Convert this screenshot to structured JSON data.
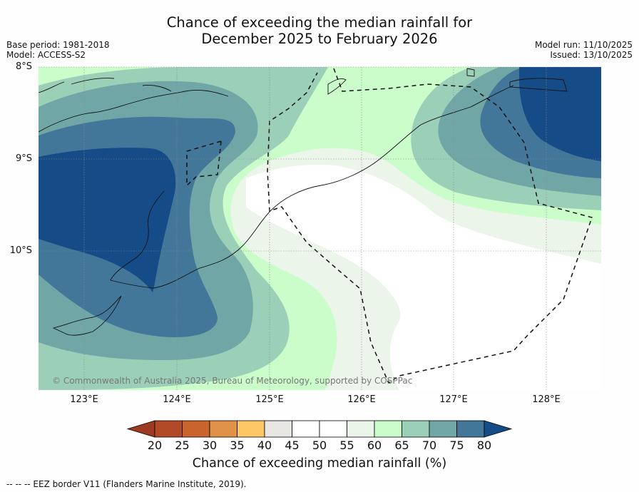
{
  "title": {
    "line1": "Chance of exceeding the median rainfall for",
    "line2": "December 2025 to February 2026"
  },
  "meta": {
    "base_period": "Base period: 1981-2018",
    "model": "Model: ACCESS-S2",
    "model_run": "Model run: 11/10/2025",
    "issued": "Issued: 13/10/2025"
  },
  "map": {
    "lat_labels": [
      "8°S",
      "9°S",
      "10°S"
    ],
    "lon_labels": [
      "123°E",
      "124°E",
      "125°E",
      "126°E",
      "127°E",
      "128°E"
    ],
    "copyright": "© Commonwealth of Australia 2025, Bureau of Meteorology, supported by COSPPac"
  },
  "colorbar": {
    "ticks": [
      "20",
      "25",
      "30",
      "35",
      "40",
      "45",
      "50",
      "55",
      "60",
      "65",
      "70",
      "75",
      "80"
    ],
    "colors": [
      "#b24a28",
      "#c9642f",
      "#e09348",
      "#fdc764",
      "#e7e6e2",
      "#ffffff",
      "#ffffff",
      "#ecf5ea",
      "#cbfdcb",
      "#9ccfb8",
      "#71a6a6",
      "#43779a"
    ],
    "under_color": "#9d3a1f",
    "over_color": "#154c87",
    "label": "Chance of exceeding median rainfall (%)"
  },
  "footnote": "--  --  -- EEZ border V11 (Flanders Marine Institute, 2019)."
}
